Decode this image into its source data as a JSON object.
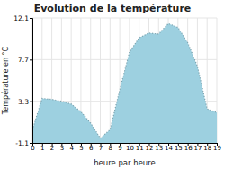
{
  "chart_data": {
    "type": "area",
    "title": "Evolution de la température",
    "xlabel": "heure par heure",
    "ylabel": "Température en °C",
    "x": [
      0,
      1,
      2,
      3,
      4,
      5,
      6,
      7,
      8,
      9,
      10,
      11,
      12,
      13,
      14,
      15,
      16,
      17,
      18,
      19
    ],
    "values": [
      0.3,
      3.6,
      3.5,
      3.3,
      3.0,
      2.2,
      1.0,
      -0.6,
      0.3,
      4.5,
      8.5,
      10.0,
      10.5,
      10.4,
      11.5,
      11.1,
      9.5,
      7.0,
      2.5,
      2.1
    ],
    "color": "#9dd0e0",
    "line_style": "dotted",
    "xlim": [
      0,
      19
    ],
    "xticks": [
      0,
      1,
      2,
      3,
      4,
      5,
      6,
      7,
      8,
      9,
      10,
      11,
      12,
      13,
      14,
      15,
      16,
      17,
      18,
      19
    ],
    "ylim": [
      -1.1,
      12.1
    ],
    "yticks": [
      -1.1,
      3.3,
      7.7,
      12.1
    ],
    "grid": true
  }
}
